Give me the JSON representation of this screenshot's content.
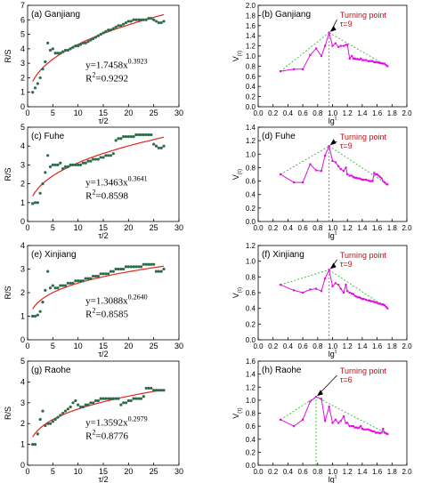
{
  "colors": {
    "rs_points": "#2e6b4a",
    "rs_fit": "#e0241b",
    "v_line": "#e00fe0",
    "guide": "#27c227",
    "annotation": "#c0101a",
    "axis": "#000000"
  },
  "rs_axes": {
    "xlabel": "τ/2",
    "ylabel": "R/S",
    "xlim": [
      0,
      30
    ],
    "xticks": [
      "0",
      "5",
      "10",
      "15",
      "20",
      "25",
      "30"
    ]
  },
  "v_axes": {
    "xlabel": "lg",
    "xlabel_sup": "τ",
    "ylabel": "V",
    "ylabel_sub": "(τ)",
    "xlim": [
      0,
      2
    ],
    "xticks": [
      "0.0",
      "0.2",
      "0.4",
      "0.6",
      "0.8",
      "1.0",
      "1.2",
      "1.4",
      "1.6",
      "1.8",
      "2.0"
    ]
  },
  "chart_data": [
    {
      "type": "scatter",
      "title": "(a) Ganjiang",
      "ylim": [
        0,
        7
      ],
      "yticks": [
        "0",
        "1",
        "2",
        "3",
        "4",
        "5",
        "6",
        "7"
      ],
      "equation": {
        "prefix": "y=1.7458x",
        "exponent": "0.3923",
        "r2_label": "R",
        "r2_exp": "2",
        "r2_value": "=0.9292"
      },
      "fit": {
        "a": 1.7458,
        "b": 0.3923
      },
      "x": [
        1,
        1.5,
        2,
        2.5,
        3,
        3.5,
        4,
        4.5,
        5,
        5.5,
        6,
        6.5,
        7,
        7.5,
        8,
        8.5,
        9,
        9.5,
        10,
        10.5,
        11,
        11.5,
        12,
        12.5,
        13,
        13.5,
        14,
        14.5,
        15,
        15.5,
        16,
        16.5,
        17,
        17.5,
        18,
        18.5,
        19,
        19.5,
        20,
        20.5,
        21,
        21.5,
        22,
        22.5,
        23,
        23.5,
        24,
        24.5,
        25,
        25.5,
        26,
        26.5,
        27
      ],
      "y": [
        1.0,
        1.3,
        1.6,
        2.0,
        2.6,
        3.1,
        4.4,
        3.9,
        4.0,
        3.7,
        3.7,
        3.7,
        3.8,
        3.9,
        3.9,
        4.0,
        4.1,
        4.2,
        4.2,
        4.3,
        4.4,
        4.4,
        4.5,
        4.6,
        4.7,
        4.8,
        4.9,
        5.0,
        5.1,
        5.2,
        5.3,
        5.3,
        5.4,
        5.5,
        5.6,
        5.6,
        5.7,
        5.8,
        5.9,
        5.9,
        6.0,
        6.0,
        6.0,
        6.0,
        6.0,
        6.0,
        6.1,
        6.1,
        6.0,
        5.9,
        5.8,
        5.8,
        5.9
      ]
    },
    {
      "type": "line",
      "title": "(b) Ganjiang",
      "ylim": [
        0,
        2
      ],
      "yticks": [
        "0.0",
        "0.2",
        "0.4",
        "0.6",
        "0.8",
        "1.0",
        "1.2",
        "1.4",
        "1.6",
        "1.8",
        "2.0"
      ],
      "annotation": {
        "text": "Turning point",
        "tau_text": "τ=9",
        "x": 0.954,
        "y": 1.46
      },
      "x": [
        0.3,
        0.48,
        0.6,
        0.7,
        0.78,
        0.85,
        0.9,
        0.954,
        1.0,
        1.04,
        1.08,
        1.11,
        1.15,
        1.18,
        1.2,
        1.23,
        1.26,
        1.28,
        1.3,
        1.32,
        1.34,
        1.36,
        1.38,
        1.4,
        1.42,
        1.45,
        1.48,
        1.5,
        1.52,
        1.54,
        1.56,
        1.58,
        1.6,
        1.62,
        1.64,
        1.66,
        1.68,
        1.7,
        1.72,
        1.74
      ],
      "y": [
        0.7,
        0.74,
        0.74,
        1.02,
        1.15,
        1.0,
        1.2,
        1.46,
        1.2,
        1.25,
        1.18,
        1.2,
        1.2,
        1.22,
        1.22,
        0.95,
        1.0,
        0.95,
        0.95,
        0.94,
        0.94,
        0.93,
        0.95,
        0.92,
        0.92,
        0.92,
        0.9,
        0.9,
        0.9,
        0.9,
        0.88,
        0.88,
        0.88,
        0.87,
        0.86,
        0.86,
        0.85,
        0.85,
        0.82,
        0.8
      ],
      "guide_lines": [
        [
          [
            0.3,
            0.7
          ],
          [
            0.954,
            1.46
          ]
        ],
        [
          [
            0.954,
            1.46
          ],
          [
            1.74,
            0.8
          ]
        ]
      ],
      "vline_x": 0.954
    },
    {
      "type": "scatter",
      "title": "(c) Fuhe",
      "ylim": [
        0,
        5
      ],
      "yticks": [
        "0",
        "1",
        "2",
        "3",
        "4",
        "5"
      ],
      "equation": {
        "prefix": "y=1.3463x",
        "exponent": "0.3641",
        "r2_label": "R",
        "r2_exp": "2",
        "r2_value": "=0.8598"
      },
      "fit": {
        "a": 1.3463,
        "b": 0.3641
      },
      "x": [
        1,
        1.5,
        2,
        2.5,
        3,
        3.5,
        4,
        4.5,
        5,
        5.5,
        6,
        6.5,
        7,
        7.5,
        8,
        8.5,
        9,
        9.5,
        10,
        10.5,
        11,
        11.5,
        12,
        12.5,
        13,
        13.5,
        14,
        14.5,
        15,
        15.5,
        16,
        16.5,
        17,
        17.5,
        18,
        18.5,
        19,
        19.5,
        20,
        20.5,
        21,
        21.5,
        22,
        22.5,
        23,
        23.5,
        24,
        24.5,
        25,
        25.5,
        26,
        26.5,
        27
      ],
      "y": [
        0.95,
        1.0,
        1.0,
        1.5,
        2.0,
        2.6,
        3.5,
        2.9,
        3.0,
        3.0,
        3.0,
        3.1,
        2.8,
        2.9,
        2.9,
        3.0,
        3.0,
        3.0,
        3.0,
        3.0,
        3.1,
        3.1,
        3.2,
        3.2,
        3.3,
        3.3,
        3.3,
        3.4,
        3.4,
        3.5,
        3.5,
        3.5,
        3.6,
        4.3,
        4.4,
        4.4,
        4.5,
        4.5,
        4.5,
        4.5,
        4.5,
        4.6,
        4.6,
        4.6,
        4.6,
        4.6,
        4.6,
        4.6,
        4.1,
        4.0,
        3.9,
        3.9,
        4.0
      ]
    },
    {
      "type": "line",
      "title": "(d) Fuhe",
      "ylim": [
        0,
        1.4
      ],
      "yticks": [
        "0.0",
        "0.2",
        "0.4",
        "0.6",
        "0.8",
        "1.0",
        "1.2",
        "1.4"
      ],
      "annotation": {
        "text": "Turning point",
        "tau_text": "τ=9",
        "x": 0.954,
        "y": 1.12
      },
      "x": [
        0.3,
        0.48,
        0.6,
        0.7,
        0.78,
        0.85,
        0.9,
        0.954,
        1.0,
        1.04,
        1.08,
        1.11,
        1.15,
        1.18,
        1.2,
        1.23,
        1.26,
        1.28,
        1.3,
        1.32,
        1.34,
        1.36,
        1.38,
        1.4,
        1.42,
        1.45,
        1.48,
        1.5,
        1.52,
        1.54,
        1.56,
        1.58,
        1.6,
        1.62,
        1.64,
        1.66,
        1.68,
        1.7,
        1.72,
        1.74
      ],
      "y": [
        0.7,
        0.58,
        0.58,
        0.85,
        0.76,
        0.75,
        0.98,
        1.12,
        0.9,
        0.88,
        0.82,
        0.78,
        0.75,
        0.8,
        0.7,
        0.68,
        0.68,
        0.66,
        0.65,
        0.65,
        0.64,
        0.64,
        0.63,
        0.62,
        0.62,
        0.62,
        0.61,
        0.6,
        0.6,
        0.6,
        0.72,
        0.7,
        0.7,
        0.68,
        0.66,
        0.64,
        0.6,
        0.58,
        0.56,
        0.55
      ],
      "guide_lines": [
        [
          [
            0.3,
            0.7
          ],
          [
            0.954,
            1.12
          ]
        ],
        [
          [
            0.954,
            1.12
          ],
          [
            1.74,
            0.55
          ]
        ]
      ],
      "vline_x": 0.954
    },
    {
      "type": "scatter",
      "title": "(e) Xinjiang",
      "ylim": [
        0,
        4
      ],
      "yticks": [
        "0",
        "1",
        "2",
        "3",
        "4"
      ],
      "equation": {
        "prefix": "y=1.3088x",
        "exponent": "0.2640",
        "r2_label": "R",
        "r2_exp": "2",
        "r2_value": "=0.8585"
      },
      "fit": {
        "a": 1.3088,
        "b": 0.264
      },
      "x": [
        1,
        1.5,
        2,
        2.5,
        3,
        3.5,
        4,
        4.5,
        5,
        5.5,
        6,
        6.5,
        7,
        7.5,
        8,
        8.5,
        9,
        9.5,
        10,
        10.5,
        11,
        11.5,
        12,
        12.5,
        13,
        13.5,
        14,
        14.5,
        15,
        15.5,
        16,
        16.5,
        17,
        17.5,
        18,
        18.5,
        19,
        19.5,
        20,
        20.5,
        21,
        21.5,
        22,
        22.5,
        23,
        23.5,
        24,
        24.5,
        25,
        25.5,
        26,
        26.5,
        27
      ],
      "y": [
        1.0,
        1.0,
        1.05,
        1.2,
        1.6,
        2.1,
        2.9,
        2.2,
        2.3,
        2.2,
        2.2,
        2.3,
        2.3,
        2.3,
        2.4,
        2.4,
        2.4,
        2.5,
        2.5,
        2.5,
        2.5,
        2.6,
        2.6,
        2.6,
        2.7,
        2.7,
        2.7,
        2.8,
        2.8,
        2.8,
        2.8,
        2.9,
        2.9,
        3.0,
        3.0,
        3.0,
        3.0,
        3.1,
        3.1,
        3.1,
        3.1,
        3.1,
        3.1,
        3.1,
        3.2,
        3.2,
        3.2,
        3.2,
        3.2,
        2.9,
        2.9,
        2.9,
        3.0
      ]
    },
    {
      "type": "line",
      "title": "(f) Xinjiang",
      "ylim": [
        0,
        1.2
      ],
      "yticks": [
        "0.0",
        "0.2",
        "0.4",
        "0.6",
        "0.8",
        "1.0",
        "1.2"
      ],
      "annotation": {
        "text": "Turning point",
        "tau_text": "τ=9",
        "x": 0.954,
        "y": 0.89
      },
      "x": [
        0.3,
        0.48,
        0.6,
        0.7,
        0.78,
        0.85,
        0.9,
        0.954,
        1.0,
        1.04,
        1.08,
        1.11,
        1.15,
        1.18,
        1.2,
        1.23,
        1.26,
        1.28,
        1.3,
        1.32,
        1.34,
        1.36,
        1.38,
        1.4,
        1.42,
        1.45,
        1.48,
        1.5,
        1.52,
        1.54,
        1.56,
        1.58,
        1.6,
        1.62,
        1.64,
        1.66,
        1.68,
        1.7,
        1.72,
        1.74
      ],
      "y": [
        0.7,
        0.63,
        0.6,
        0.64,
        0.65,
        0.62,
        0.78,
        0.89,
        0.68,
        0.72,
        0.7,
        0.65,
        0.6,
        0.7,
        0.62,
        0.6,
        0.59,
        0.58,
        0.56,
        0.55,
        0.54,
        0.54,
        0.53,
        0.52,
        0.52,
        0.51,
        0.5,
        0.5,
        0.49,
        0.49,
        0.48,
        0.48,
        0.47,
        0.46,
        0.46,
        0.45,
        0.45,
        0.44,
        0.42,
        0.4
      ],
      "guide_lines": [
        [
          [
            0.3,
            0.7
          ],
          [
            0.954,
            0.89
          ]
        ],
        [
          [
            0.954,
            0.89
          ],
          [
            1.74,
            0.4
          ]
        ]
      ],
      "vline_x": 0.954
    },
    {
      "type": "scatter",
      "title": "(g) Raohe",
      "ylim": [
        0,
        5
      ],
      "yticks": [
        "0",
        "1",
        "2",
        "3",
        "4",
        "5"
      ],
      "equation": {
        "prefix": "y=1.3592x",
        "exponent": "0.2979",
        "r2_label": "R",
        "r2_exp": "2",
        "r2_value": "=0.8776"
      },
      "fit": {
        "a": 1.3592,
        "b": 0.2979
      },
      "x": [
        1,
        1.5,
        2,
        2.5,
        3,
        3.5,
        4,
        4.5,
        5,
        5.5,
        6,
        6.5,
        7,
        7.5,
        8,
        8.5,
        9,
        9.5,
        10,
        10.5,
        11,
        11.5,
        12,
        12.5,
        13,
        13.5,
        14,
        14.5,
        15,
        15.5,
        16,
        16.5,
        17,
        17.5,
        18,
        18.5,
        19,
        19.5,
        20,
        20.5,
        21,
        21.5,
        22,
        22.5,
        23,
        23.5,
        24,
        24.5,
        25,
        25.5,
        26,
        26.5,
        27
      ],
      "y": [
        1.0,
        1.0,
        1.5,
        2.2,
        2.6,
        1.9,
        2.0,
        2.0,
        2.1,
        2.2,
        2.3,
        2.4,
        2.5,
        2.6,
        2.7,
        2.8,
        3.0,
        3.1,
        2.9,
        2.8,
        2.8,
        2.9,
        2.9,
        3.0,
        3.0,
        3.1,
        3.1,
        3.2,
        3.2,
        3.2,
        3.2,
        3.2,
        3.2,
        3.2,
        3.2,
        2.9,
        3.0,
        3.0,
        3.1,
        3.1,
        3.2,
        3.2,
        3.2,
        3.2,
        3.3,
        3.7,
        3.7,
        3.7,
        3.6,
        3.6,
        3.6,
        3.6,
        3.6
      ]
    },
    {
      "type": "line",
      "title": "(h) Raohe",
      "ylim": [
        0,
        1.6
      ],
      "yticks": [
        "0.0",
        "0.2",
        "0.4",
        "0.6",
        "0.8",
        "1.0",
        "1.2",
        "1.4",
        "1.6"
      ],
      "annotation": {
        "text": "Turning point",
        "tau_text": "τ=6",
        "x": 0.778,
        "y": 1.05
      },
      "x": [
        0.3,
        0.48,
        0.6,
        0.7,
        0.778,
        0.85,
        0.9,
        0.954,
        1.0,
        1.04,
        1.08,
        1.11,
        1.15,
        1.18,
        1.2,
        1.23,
        1.26,
        1.28,
        1.3,
        1.32,
        1.34,
        1.36,
        1.38,
        1.4,
        1.42,
        1.45,
        1.48,
        1.5,
        1.52,
        1.54,
        1.56,
        1.58,
        1.6,
        1.62,
        1.64,
        1.66,
        1.68,
        1.7,
        1.72,
        1.74
      ],
      "y": [
        0.7,
        0.6,
        0.7,
        0.98,
        1.05,
        1.02,
        0.68,
        0.9,
        0.65,
        0.7,
        0.65,
        0.68,
        0.75,
        0.65,
        0.65,
        0.6,
        0.6,
        0.6,
        0.58,
        0.58,
        0.57,
        0.58,
        0.6,
        0.56,
        0.55,
        0.55,
        0.55,
        0.54,
        0.53,
        0.52,
        0.52,
        0.5,
        0.5,
        0.5,
        0.49,
        0.5,
        0.56,
        0.5,
        0.49,
        0.48
      ],
      "guide_lines": [
        [
          [
            0.3,
            0.7
          ],
          [
            0.778,
            1.05
          ]
        ],
        [
          [
            0.778,
            1.05
          ],
          [
            1.74,
            0.48
          ]
        ]
      ],
      "vline_x": 0.778
    }
  ]
}
